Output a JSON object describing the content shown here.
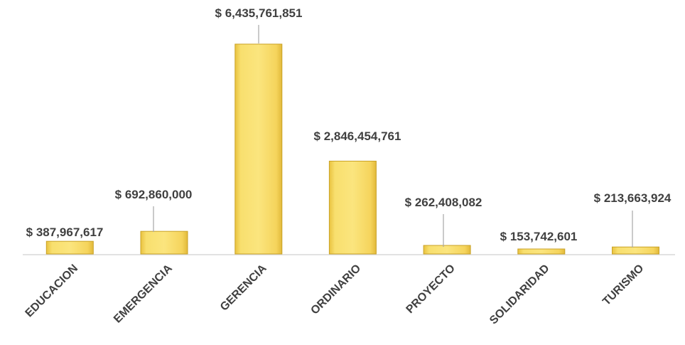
{
  "chart_data": {
    "type": "bar",
    "title": "",
    "xlabel": "",
    "ylabel": "",
    "categories": [
      "EDUCACION",
      "EMERGENCIA",
      "GERENCIA",
      "ORDINARIO",
      "PROYECTO",
      "SOLIDARIDAD",
      "TURISMO"
    ],
    "values": [
      387967617,
      692860000,
      6435761851,
      2846454761,
      262408082,
      153742601,
      213663924
    ],
    "data_labels": [
      "$ 387,967,617",
      "$ 692,860,000",
      "$ 6,435,761,851",
      "$ 2,846,454,761",
      "$ 262,408,082",
      "$ 153,742,601",
      "$ 213,663,924"
    ],
    "ylim": [
      0,
      6435761851
    ],
    "grid": false,
    "legend": "none",
    "bar_color": "#F5D45C",
    "bar_edge_color": "#C9A227"
  }
}
